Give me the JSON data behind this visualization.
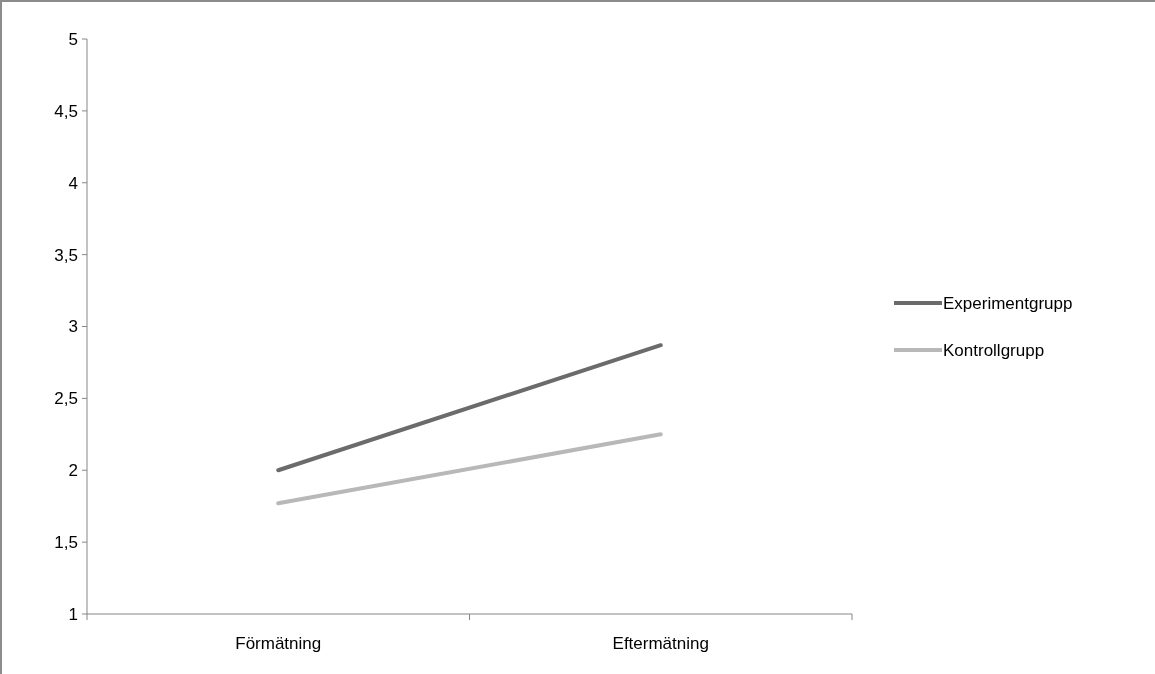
{
  "chart_data": {
    "type": "line",
    "categories": [
      "Förmätning",
      "Eftermätning"
    ],
    "series": [
      {
        "name": "Experimentgrupp",
        "color": "#6b6b6b",
        "values": [
          2.0,
          2.87
        ]
      },
      {
        "name": "Kontrollgrupp",
        "color": "#b8b8b8",
        "values": [
          1.77,
          2.25
        ]
      }
    ],
    "ylim": [
      1,
      5
    ],
    "yticks": [
      1,
      {
        "value": 1.5,
        "label": "1,5"
      },
      2,
      {
        "value": 2.5,
        "label": "2,5"
      },
      3,
      {
        "value": 3.5,
        "label": "3,5"
      },
      4,
      {
        "value": 4.5,
        "label": "4,5"
      },
      5
    ],
    "grid": false,
    "legend": "right",
    "marker": "none",
    "line_style": "solid"
  }
}
